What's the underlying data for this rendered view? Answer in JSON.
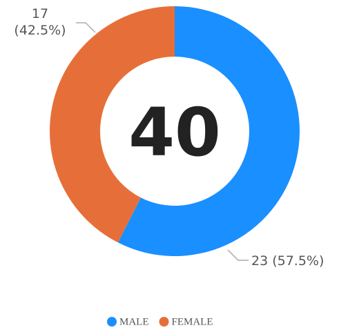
{
  "chart_data": {
    "type": "pie",
    "categories": [
      "MALE",
      "FEMALE"
    ],
    "values": [
      23,
      17
    ],
    "value_labels": [
      "23 (57.5%)",
      "17 (42.5%)"
    ],
    "colors": [
      "#1a8fff",
      "#e66f39"
    ],
    "total": 40,
    "legend": "bottom"
  }
}
